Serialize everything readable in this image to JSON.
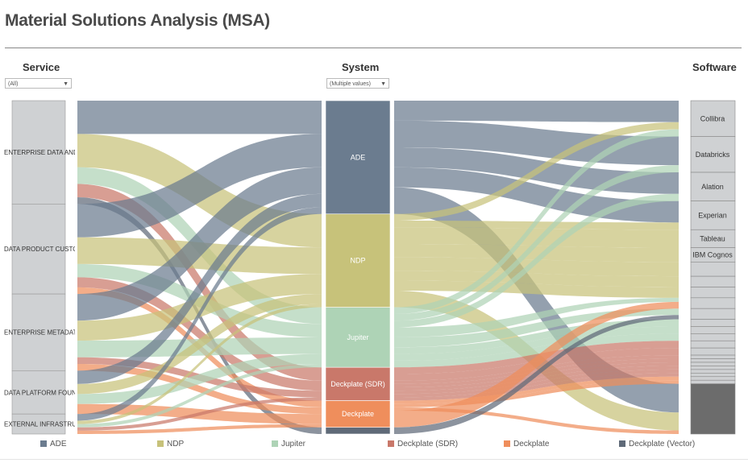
{
  "title": "Material Solutions Analysis (MSA)",
  "columns": {
    "service": {
      "label": "Service",
      "filter": "(All)"
    },
    "system": {
      "label": "System",
      "filter": "(Multiple values)"
    },
    "software": {
      "label": "Software"
    }
  },
  "colors": {
    "ADE": "#6b7c8f",
    "NDP": "#c7c27a",
    "Jupiter": "#aed3b6",
    "Deckplate (SDR)": "#c9786a",
    "Deckplate": "#ef8e5c",
    "Deckplate (Vector)": "#5f6a78",
    "node_gray": "#cfd1d3",
    "software_dark": "#6c6c6c"
  },
  "chart_data": {
    "type": "sankey",
    "title": "Material Solutions Analysis (MSA)",
    "services": [
      {
        "label": "ENTERPRISE DATA AND A",
        "value": 31
      },
      {
        "label": "DATA PRODUCT CUSTOMI",
        "value": 27
      },
      {
        "label": "ENTERPRISE METADATA",
        "value": 23
      },
      {
        "label": "DATA PLATFORM FOUNDA",
        "value": 13
      },
      {
        "label": "EXTERNAL INFRASTRUCT",
        "value": 6
      }
    ],
    "systems": [
      {
        "label": "ADE",
        "value": 34
      },
      {
        "label": "NDP",
        "value": 28
      },
      {
        "label": "Jupiter",
        "value": 18
      },
      {
        "label": "Deckplate (SDR)",
        "value": 10
      },
      {
        "label": "Deckplate",
        "value": 8
      },
      {
        "label": "Deckplate (Vector)",
        "value": 2
      }
    ],
    "software": [
      {
        "label": "Collibra",
        "value": 10
      },
      {
        "label": "Databricks",
        "value": 10
      },
      {
        "label": "Alation",
        "value": 8
      },
      {
        "label": "Experian",
        "value": 8
      },
      {
        "label": "Tableau",
        "value": 5
      },
      {
        "label": "IBM Cognos",
        "value": 4
      },
      {
        "label": "",
        "value": 4
      },
      {
        "label": "",
        "value": 3
      },
      {
        "label": "",
        "value": 3
      },
      {
        "label": "",
        "value": 3
      },
      {
        "label": "",
        "value": 3
      },
      {
        "label": "",
        "value": 2
      },
      {
        "label": "",
        "value": 2
      },
      {
        "label": "",
        "value": 2
      },
      {
        "label": "",
        "value": 2
      },
      {
        "label": "",
        "value": 2
      },
      {
        "label": "",
        "value": 1
      },
      {
        "label": "",
        "value": 1
      },
      {
        "label": "",
        "value": 1
      },
      {
        "label": "",
        "value": 1
      },
      {
        "label": "",
        "value": 1
      },
      {
        "label": "",
        "value": 1
      },
      {
        "label": "",
        "value": 1
      },
      {
        "label": "",
        "value": 1
      },
      {
        "label": "",
        "value": 14
      }
    ],
    "legend": [
      "ADE",
      "NDP",
      "Jupiter",
      "Deckplate (SDR)",
      "Deckplate",
      "Deckplate (Vector)"
    ],
    "links_left": [
      {
        "service": 0,
        "system": 0,
        "value": 10
      },
      {
        "service": 0,
        "system": 1,
        "value": 10
      },
      {
        "service": 0,
        "system": 2,
        "value": 5
      },
      {
        "service": 0,
        "system": 3,
        "value": 4
      },
      {
        "service": 0,
        "system": 5,
        "value": 2
      },
      {
        "service": 1,
        "system": 0,
        "value": 10
      },
      {
        "service": 1,
        "system": 1,
        "value": 8
      },
      {
        "service": 1,
        "system": 2,
        "value": 4
      },
      {
        "service": 1,
        "system": 3,
        "value": 3
      },
      {
        "service": 1,
        "system": 4,
        "value": 2
      },
      {
        "service": 2,
        "system": 0,
        "value": 8
      },
      {
        "service": 2,
        "system": 1,
        "value": 6
      },
      {
        "service": 2,
        "system": 2,
        "value": 5
      },
      {
        "service": 2,
        "system": 3,
        "value": 2
      },
      {
        "service": 2,
        "system": 4,
        "value": 2
      },
      {
        "service": 3,
        "system": 0,
        "value": 4
      },
      {
        "service": 3,
        "system": 1,
        "value": 3
      },
      {
        "service": 3,
        "system": 2,
        "value": 3
      },
      {
        "service": 3,
        "system": 4,
        "value": 3
      },
      {
        "service": 4,
        "system": 0,
        "value": 2
      },
      {
        "service": 4,
        "system": 1,
        "value": 1
      },
      {
        "service": 4,
        "system": 2,
        "value": 1
      },
      {
        "service": 4,
        "system": 3,
        "value": 1
      },
      {
        "service": 4,
        "system": 4,
        "value": 1
      }
    ],
    "links_right": [
      {
        "system": 0,
        "software": 0,
        "value": 6
      },
      {
        "system": 0,
        "software": 1,
        "value": 8
      },
      {
        "system": 0,
        "software": 2,
        "value": 6
      },
      {
        "system": 0,
        "software": 3,
        "value": 6
      },
      {
        "system": 0,
        "software": 24,
        "value": 8
      },
      {
        "system": 1,
        "software": 0,
        "value": 2
      },
      {
        "system": 1,
        "software": 3,
        "value": 2
      },
      {
        "system": 1,
        "software": 4,
        "value": 5
      },
      {
        "system": 1,
        "software": 5,
        "value": 4
      },
      {
        "system": 1,
        "software": 6,
        "value": 4
      },
      {
        "system": 1,
        "software": 7,
        "value": 3
      },
      {
        "system": 1,
        "software": 8,
        "value": 3
      },
      {
        "system": 1,
        "software": 24,
        "value": 5
      },
      {
        "system": 2,
        "software": 0,
        "value": 2
      },
      {
        "system": 2,
        "software": 1,
        "value": 2
      },
      {
        "system": 2,
        "software": 2,
        "value": 2
      },
      {
        "system": 2,
        "software": 9,
        "value": 3
      },
      {
        "system": 2,
        "software": 10,
        "value": 3
      },
      {
        "system": 2,
        "software": 11,
        "value": 2
      },
      {
        "system": 2,
        "software": 12,
        "value": 2
      },
      {
        "system": 2,
        "software": 13,
        "value": 2
      },
      {
        "system": 3,
        "software": 14,
        "value": 2
      },
      {
        "system": 3,
        "software": 15,
        "value": 2
      },
      {
        "system": 3,
        "software": 16,
        "value": 1
      },
      {
        "system": 3,
        "software": 17,
        "value": 1
      },
      {
        "system": 3,
        "software": 18,
        "value": 1
      },
      {
        "system": 3,
        "software": 19,
        "value": 1
      },
      {
        "system": 3,
        "software": 20,
        "value": 1
      },
      {
        "system": 3,
        "software": 21,
        "value": 1
      },
      {
        "system": 4,
        "software": 22,
        "value": 1
      },
      {
        "system": 4,
        "software": 23,
        "value": 1
      },
      {
        "system": 4,
        "software": 24,
        "value": 1
      },
      {
        "system": 4,
        "software": 2,
        "value": 0
      },
      {
        "system": 4,
        "software": 3,
        "value": 0
      },
      {
        "system": 4,
        "software": 1,
        "value": 0
      },
      {
        "system": 4,
        "software": 0,
        "value": 0
      },
      {
        "system": 4,
        "software": 5,
        "value": 0
      },
      {
        "system": 4,
        "software": 9,
        "value": 5
      },
      {
        "system": 5,
        "software": 24,
        "value": 0
      },
      {
        "system": 5,
        "software": 10,
        "value": 2
      }
    ]
  }
}
